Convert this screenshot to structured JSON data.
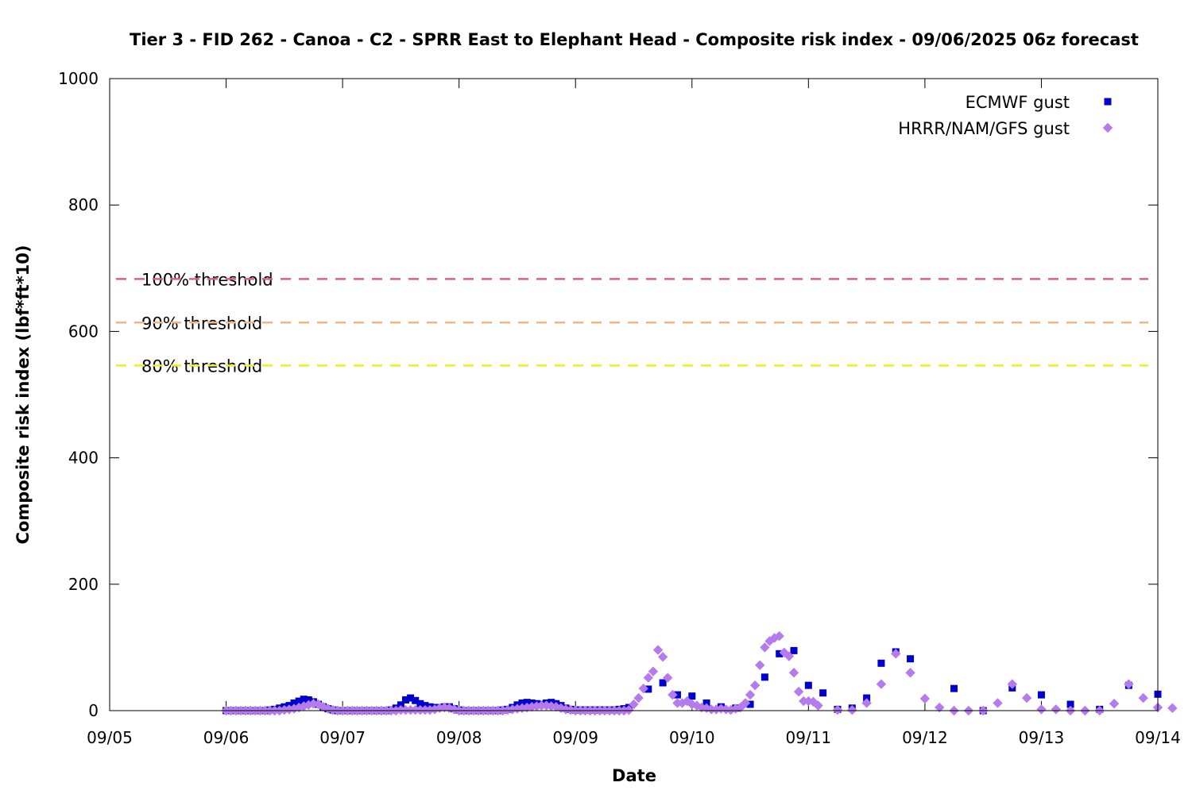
{
  "chart_data": {
    "type": "scatter",
    "title": "Tier 3 - FID 262 - Canoa - C2 - SPRR East to Elephant Head - Composite risk index - 09/06/2025 06z forecast",
    "xlabel": "Date",
    "ylabel": "Composite risk index (lbf*ft*10)",
    "xlim": [
      "09/05",
      "09/14"
    ],
    "ylim": [
      0,
      1000
    ],
    "x_ticks": [
      "09/05",
      "09/06",
      "09/07",
      "09/08",
      "09/09",
      "09/10",
      "09/11",
      "09/12",
      "09/13",
      "09/14"
    ],
    "y_ticks": [
      0,
      200,
      400,
      600,
      800,
      1000
    ],
    "grid": false,
    "legend_position": "top-right",
    "thresholds": [
      {
        "label": "100% threshold",
        "value": 683,
        "color": "#e0607e"
      },
      {
        "label": "90% threshold",
        "value": 614,
        "color": "#f4b67e"
      },
      {
        "label": "80% threshold",
        "value": 546,
        "color": "#eeee22"
      }
    ],
    "series": [
      {
        "name": "ECMWF gust",
        "marker": "square",
        "color": "#0000cc",
        "points": [
          [
            "09/06 00:00",
            0
          ],
          [
            "09/06 01:00",
            0
          ],
          [
            "09/06 02:00",
            0
          ],
          [
            "09/06 03:00",
            0
          ],
          [
            "09/06 04:00",
            0
          ],
          [
            "09/06 05:00",
            0
          ],
          [
            "09/06 06:00",
            0
          ],
          [
            "09/06 07:00",
            0
          ],
          [
            "09/06 08:00",
            0
          ],
          [
            "09/06 09:00",
            1
          ],
          [
            "09/06 10:00",
            2
          ],
          [
            "09/06 11:00",
            4
          ],
          [
            "09/06 12:00",
            6
          ],
          [
            "09/06 13:00",
            8
          ],
          [
            "09/06 14:00",
            12
          ],
          [
            "09/06 15:00",
            15
          ],
          [
            "09/06 16:00",
            18
          ],
          [
            "09/06 17:00",
            17
          ],
          [
            "09/06 18:00",
            14
          ],
          [
            "09/06 19:00",
            10
          ],
          [
            "09/06 20:00",
            6
          ],
          [
            "09/06 21:00",
            3
          ],
          [
            "09/06 22:00",
            1
          ],
          [
            "09/06 23:00",
            0
          ],
          [
            "09/07 00:00",
            0
          ],
          [
            "09/07 01:00",
            0
          ],
          [
            "09/07 02:00",
            0
          ],
          [
            "09/07 03:00",
            0
          ],
          [
            "09/07 04:00",
            0
          ],
          [
            "09/07 05:00",
            0
          ],
          [
            "09/07 06:00",
            0
          ],
          [
            "09/07 07:00",
            0
          ],
          [
            "09/07 08:00",
            0
          ],
          [
            "09/07 09:00",
            0
          ],
          [
            "09/07 10:00",
            1
          ],
          [
            "09/07 11:00",
            4
          ],
          [
            "09/07 12:00",
            9
          ],
          [
            "09/07 13:00",
            17
          ],
          [
            "09/07 14:00",
            20
          ],
          [
            "09/07 15:00",
            16
          ],
          [
            "09/07 16:00",
            11
          ],
          [
            "09/07 17:00",
            8
          ],
          [
            "09/07 18:00",
            6
          ],
          [
            "09/07 19:00",
            5
          ],
          [
            "09/07 20:00",
            5
          ],
          [
            "09/07 21:00",
            6
          ],
          [
            "09/07 22:00",
            6
          ],
          [
            "09/07 23:00",
            3
          ],
          [
            "09/08 00:00",
            1
          ],
          [
            "09/08 01:00",
            0
          ],
          [
            "09/08 02:00",
            0
          ],
          [
            "09/08 03:00",
            0
          ],
          [
            "09/08 04:00",
            0
          ],
          [
            "09/08 05:00",
            0
          ],
          [
            "09/08 06:00",
            0
          ],
          [
            "09/08 07:00",
            0
          ],
          [
            "09/08 08:00",
            0
          ],
          [
            "09/08 09:00",
            1
          ],
          [
            "09/08 10:00",
            2
          ],
          [
            "09/08 11:00",
            5
          ],
          [
            "09/08 12:00",
            9
          ],
          [
            "09/08 13:00",
            12
          ],
          [
            "09/08 14:00",
            13
          ],
          [
            "09/08 15:00",
            12
          ],
          [
            "09/08 16:00",
            11
          ],
          [
            "09/08 17:00",
            10
          ],
          [
            "09/08 18:00",
            12
          ],
          [
            "09/08 19:00",
            13
          ],
          [
            "09/08 20:00",
            11
          ],
          [
            "09/08 21:00",
            8
          ],
          [
            "09/08 22:00",
            4
          ],
          [
            "09/08 23:00",
            2
          ],
          [
            "09/09 00:00",
            1
          ],
          [
            "09/09 01:00",
            1
          ],
          [
            "09/09 02:00",
            1
          ],
          [
            "09/09 03:00",
            1
          ],
          [
            "09/09 04:00",
            1
          ],
          [
            "09/09 05:00",
            1
          ],
          [
            "09/09 06:00",
            1
          ],
          [
            "09/09 07:00",
            1
          ],
          [
            "09/09 08:00",
            1
          ],
          [
            "09/09 09:00",
            2
          ],
          [
            "09/09 10:00",
            3
          ],
          [
            "09/09 11:00",
            5
          ],
          [
            "09/09 15:00",
            34
          ],
          [
            "09/09 18:00",
            44
          ],
          [
            "09/09 21:00",
            25
          ],
          [
            "09/10 00:00",
            23
          ],
          [
            "09/10 03:00",
            12
          ],
          [
            "09/10 06:00",
            6
          ],
          [
            "09/10 09:00",
            4
          ],
          [
            "09/10 12:00",
            10
          ],
          [
            "09/10 15:00",
            53
          ],
          [
            "09/10 18:00",
            90
          ],
          [
            "09/10 21:00",
            95
          ],
          [
            "09/11 00:00",
            40
          ],
          [
            "09/11 03:00",
            28
          ],
          [
            "09/11 06:00",
            2
          ],
          [
            "09/11 09:00",
            4
          ],
          [
            "09/11 12:00",
            20
          ],
          [
            "09/11 15:00",
            75
          ],
          [
            "09/11 18:00",
            93
          ],
          [
            "09/11 21:00",
            82
          ],
          [
            "09/12 06:00",
            35
          ],
          [
            "09/12 12:00",
            0
          ],
          [
            "09/12 18:00",
            36
          ],
          [
            "09/13 00:00",
            25
          ],
          [
            "09/13 06:00",
            10
          ],
          [
            "09/13 12:00",
            2
          ],
          [
            "09/13 18:00",
            40
          ],
          [
            "09/14 00:00",
            26
          ]
        ]
      },
      {
        "name": "HRRR/NAM/GFS gust",
        "marker": "diamond",
        "color": "#b57bed",
        "points": [
          [
            "09/06 00:00",
            0
          ],
          [
            "09/06 01:00",
            0
          ],
          [
            "09/06 02:00",
            0
          ],
          [
            "09/06 03:00",
            0
          ],
          [
            "09/06 04:00",
            0
          ],
          [
            "09/06 05:00",
            0
          ],
          [
            "09/06 06:00",
            0
          ],
          [
            "09/06 07:00",
            0
          ],
          [
            "09/06 08:00",
            0
          ],
          [
            "09/06 09:00",
            0
          ],
          [
            "09/06 10:00",
            0
          ],
          [
            "09/06 11:00",
            0
          ],
          [
            "09/06 12:00",
            1
          ],
          [
            "09/06 13:00",
            2
          ],
          [
            "09/06 14:00",
            3
          ],
          [
            "09/06 15:00",
            5
          ],
          [
            "09/06 16:00",
            7
          ],
          [
            "09/06 17:00",
            9
          ],
          [
            "09/06 18:00",
            11
          ],
          [
            "09/06 19:00",
            10
          ],
          [
            "09/06 20:00",
            6
          ],
          [
            "09/06 21:00",
            3
          ],
          [
            "09/06 22:00",
            1
          ],
          [
            "09/06 23:00",
            0
          ],
          [
            "09/07 00:00",
            0
          ],
          [
            "09/07 01:00",
            0
          ],
          [
            "09/07 02:00",
            0
          ],
          [
            "09/07 03:00",
            0
          ],
          [
            "09/07 04:00",
            0
          ],
          [
            "09/07 05:00",
            0
          ],
          [
            "09/07 06:00",
            0
          ],
          [
            "09/07 07:00",
            0
          ],
          [
            "09/07 08:00",
            0
          ],
          [
            "09/07 09:00",
            0
          ],
          [
            "09/07 10:00",
            0
          ],
          [
            "09/07 11:00",
            0
          ],
          [
            "09/07 12:00",
            1
          ],
          [
            "09/07 13:00",
            1
          ],
          [
            "09/07 14:00",
            1
          ],
          [
            "09/07 15:00",
            1
          ],
          [
            "09/07 16:00",
            1
          ],
          [
            "09/07 17:00",
            1
          ],
          [
            "09/07 18:00",
            1
          ],
          [
            "09/07 19:00",
            2
          ],
          [
            "09/07 20:00",
            4
          ],
          [
            "09/07 21:00",
            5
          ],
          [
            "09/07 22:00",
            4
          ],
          [
            "09/07 23:00",
            2
          ],
          [
            "09/08 00:00",
            0
          ],
          [
            "09/08 01:00",
            0
          ],
          [
            "09/08 02:00",
            0
          ],
          [
            "09/08 03:00",
            0
          ],
          [
            "09/08 04:00",
            0
          ],
          [
            "09/08 05:00",
            0
          ],
          [
            "09/08 06:00",
            0
          ],
          [
            "09/08 07:00",
            0
          ],
          [
            "09/08 08:00",
            0
          ],
          [
            "09/08 09:00",
            0
          ],
          [
            "09/08 10:00",
            1
          ],
          [
            "09/08 11:00",
            2
          ],
          [
            "09/08 12:00",
            3
          ],
          [
            "09/08 13:00",
            4
          ],
          [
            "09/08 14:00",
            5
          ],
          [
            "09/08 15:00",
            6
          ],
          [
            "09/08 16:00",
            7
          ],
          [
            "09/08 17:00",
            8
          ],
          [
            "09/08 18:00",
            8
          ],
          [
            "09/08 19:00",
            7
          ],
          [
            "09/08 20:00",
            6
          ],
          [
            "09/08 21:00",
            4
          ],
          [
            "09/08 22:00",
            2
          ],
          [
            "09/08 23:00",
            1
          ],
          [
            "09/09 00:00",
            0
          ],
          [
            "09/09 01:00",
            0
          ],
          [
            "09/09 02:00",
            0
          ],
          [
            "09/09 03:00",
            0
          ],
          [
            "09/09 04:00",
            0
          ],
          [
            "09/09 05:00",
            0
          ],
          [
            "09/09 06:00",
            0
          ],
          [
            "09/09 07:00",
            0
          ],
          [
            "09/09 08:00",
            0
          ],
          [
            "09/09 09:00",
            0
          ],
          [
            "09/09 10:00",
            0
          ],
          [
            "09/09 11:00",
            1
          ],
          [
            "09/09 12:00",
            10
          ],
          [
            "09/09 13:00",
            20
          ],
          [
            "09/09 14:00",
            35
          ],
          [
            "09/09 15:00",
            52
          ],
          [
            "09/09 16:00",
            62
          ],
          [
            "09/09 17:00",
            96
          ],
          [
            "09/09 18:00",
            85
          ],
          [
            "09/09 19:00",
            52
          ],
          [
            "09/09 20:00",
            25
          ],
          [
            "09/09 21:00",
            12
          ],
          [
            "09/09 22:00",
            12
          ],
          [
            "09/09 23:00",
            15
          ],
          [
            "09/10 00:00",
            10
          ],
          [
            "09/10 01:00",
            8
          ],
          [
            "09/10 02:00",
            5
          ],
          [
            "09/10 03:00",
            4
          ],
          [
            "09/10 04:00",
            2
          ],
          [
            "09/10 05:00",
            2
          ],
          [
            "09/10 06:00",
            3
          ],
          [
            "09/10 07:00",
            2
          ],
          [
            "09/10 08:00",
            1
          ],
          [
            "09/10 09:00",
            3
          ],
          [
            "09/10 10:00",
            5
          ],
          [
            "09/10 11:00",
            12
          ],
          [
            "09/10 12:00",
            25
          ],
          [
            "09/10 13:00",
            40
          ],
          [
            "09/10 14:00",
            72
          ],
          [
            "09/10 15:00",
            100
          ],
          [
            "09/10 16:00",
            110
          ],
          [
            "09/10 17:00",
            115
          ],
          [
            "09/10 18:00",
            118
          ],
          [
            "09/10 19:00",
            92
          ],
          [
            "09/10 20:00",
            86
          ],
          [
            "09/10 21:00",
            60
          ],
          [
            "09/10 22:00",
            30
          ],
          [
            "09/10 23:00",
            15
          ],
          [
            "09/11 00:00",
            15
          ],
          [
            "09/11 01:00",
            14
          ],
          [
            "09/11 02:00",
            8
          ],
          [
            "09/11 06:00",
            1
          ],
          [
            "09/11 09:00",
            1
          ],
          [
            "09/11 12:00",
            12
          ],
          [
            "09/11 15:00",
            42
          ],
          [
            "09/11 18:00",
            90
          ],
          [
            "09/11 21:00",
            60
          ],
          [
            "09/12 00:00",
            19
          ],
          [
            "09/12 03:00",
            5
          ],
          [
            "09/12 06:00",
            0
          ],
          [
            "09/12 09:00",
            0
          ],
          [
            "09/12 12:00",
            0
          ],
          [
            "09/12 15:00",
            12
          ],
          [
            "09/12 18:00",
            42
          ],
          [
            "09/12 21:00",
            20
          ],
          [
            "09/13 00:00",
            2
          ],
          [
            "09/13 03:00",
            2
          ],
          [
            "09/13 06:00",
            0
          ],
          [
            "09/13 09:00",
            0
          ],
          [
            "09/13 12:00",
            0
          ],
          [
            "09/13 15:00",
            11
          ],
          [
            "09/13 18:00",
            42
          ],
          [
            "09/13 21:00",
            20
          ],
          [
            "09/14 00:00",
            5
          ],
          [
            "09/14 03:00",
            4
          ]
        ]
      }
    ]
  }
}
